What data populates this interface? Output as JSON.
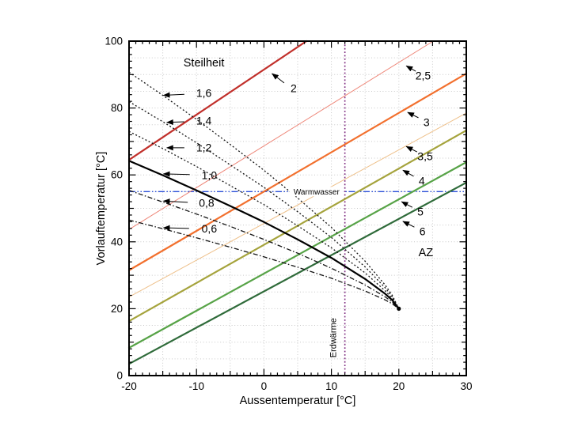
{
  "figure": {
    "background": "#ffffff",
    "steilheit_title": "Steilheit",
    "az_label": "AZ"
  },
  "chart_data": {
    "type": "line",
    "title": "",
    "xlabel": "Aussentemperatur [°C]",
    "ylabel": "Vorlauftemperatur [°C]",
    "xlim": [
      -20,
      30
    ],
    "ylim": [
      0,
      100
    ],
    "x_major_ticks": [
      -20,
      -10,
      0,
      10,
      20,
      30
    ],
    "y_major_ticks": [
      0,
      20,
      40,
      60,
      80,
      100
    ],
    "x_minor_step": 1,
    "x_medium_step": 5,
    "y_minor_step": 2,
    "y_medium_step": 10,
    "grid_step": 5,
    "grid_color": "#c9c9c9",
    "axis_color": "#000000",
    "convergence_point": [
      20,
      20
    ],
    "steilheit_curves": [
      {
        "label": "0,6",
        "slope": 0.6,
        "color": "#141414",
        "width": 1.3,
        "dash": "6 2.5 1.5 2.5",
        "x": [
          -20,
          -15,
          -10,
          -5,
          0,
          5,
          10,
          15,
          18,
          19,
          20
        ],
        "y": [
          46.5,
          43.9,
          41.2,
          38.4,
          35.5,
          32.4,
          29.1,
          25.3,
          22.6,
          21.5,
          20
        ],
        "label_xy": [
          -8.1,
          43.9
        ],
        "arrow_from": [
          -11.1,
          44.0
        ],
        "arrow_to": [
          -14.9,
          44.2
        ]
      },
      {
        "label": "0,8",
        "slope": 0.8,
        "color": "#141414",
        "width": 1.3,
        "dash": "6 2.5 1.5 2.5",
        "x": [
          -20,
          -15,
          -10,
          -5,
          0,
          5,
          10,
          15,
          18,
          19,
          20
        ],
        "y": [
          55.4,
          51.9,
          48.3,
          44.6,
          40.7,
          36.6,
          32.1,
          27.1,
          23.5,
          22.0,
          20
        ],
        "label_xy": [
          -8.5,
          51.5
        ],
        "arrow_from": [
          -11.3,
          51.8
        ],
        "arrow_to": [
          -14.9,
          52.2
        ]
      },
      {
        "label": "1,0",
        "slope": 1.0,
        "color": "#000000",
        "width": 2.2,
        "dash": null,
        "x": [
          -20,
          -15,
          -10,
          -5,
          0,
          5,
          10,
          15,
          18,
          19,
          20
        ],
        "y": [
          64.2,
          59.9,
          55.4,
          50.7,
          45.9,
          40.7,
          35.2,
          28.9,
          24.4,
          22.6,
          20
        ],
        "label_xy": [
          -8.1,
          59.8
        ],
        "arrow_from": [
          -11.0,
          60.1
        ],
        "arrow_to": [
          -14.9,
          60.3
        ]
      },
      {
        "label": "1,2",
        "slope": 1.2,
        "color": "#141414",
        "width": 1.3,
        "dash": "2 2.6",
        "x": [
          -20,
          -15,
          -10,
          -5,
          0,
          5,
          10,
          15,
          18,
          19,
          20
        ],
        "y": [
          73.0,
          67.9,
          62.5,
          56.8,
          51.1,
          44.8,
          38.2,
          30.7,
          25.3,
          23.1,
          20
        ],
        "label_xy": [
          -8.9,
          68.1
        ],
        "arrow_from": [
          -11.8,
          68.1
        ],
        "arrow_to": [
          -14.4,
          68.1
        ]
      },
      {
        "label": "1,4",
        "slope": 1.4,
        "color": "#141414",
        "width": 1.3,
        "dash": "2 2.6",
        "x": [
          -20,
          -15,
          -10,
          -5,
          0,
          5,
          10,
          15,
          18,
          19,
          20
        ],
        "y": [
          81.9,
          75.9,
          69.6,
          63.0,
          56.3,
          49.0,
          41.3,
          32.5,
          26.2,
          23.6,
          20
        ],
        "label_xy": [
          -8.9,
          76.1
        ],
        "arrow_from": [
          -11.8,
          75.9
        ],
        "arrow_to": [
          -14.4,
          75.7
        ]
      },
      {
        "label": "1,6",
        "slope": 1.6,
        "color": "#141414",
        "width": 1.3,
        "dash": "2 2.6",
        "x": [
          -20,
          -15,
          -10,
          -5,
          0,
          5,
          10,
          15,
          18,
          19,
          20
        ],
        "y": [
          90.7,
          83.8,
          76.6,
          69.1,
          61.4,
          53.1,
          44.3,
          34.2,
          27.0,
          24.1,
          20
        ],
        "label_xy": [
          -8.9,
          84.4
        ],
        "arrow_from": [
          -11.8,
          84.1
        ],
        "arrow_to": [
          -14.9,
          83.8
        ]
      }
    ],
    "az_lines": [
      {
        "label": "2",
        "color": "#c1302b",
        "width": 2.2,
        "x": [
          -20,
          6.3
        ],
        "y": [
          64.5,
          100
        ],
        "label_xy": [
          4.4,
          85.8
        ],
        "arrow_from": [
          3.0,
          87.5
        ],
        "arrow_to": [
          1.2,
          90.3
        ]
      },
      {
        "label": "2,5",
        "color": "#ee8678",
        "width": 1.0,
        "x": [
          -20,
          25.1
        ],
        "y": [
          43.7,
          100
        ],
        "label_xy": [
          23.6,
          89.6
        ],
        "arrow_from": [
          22.5,
          91.0
        ],
        "arrow_to": [
          21.1,
          92.6
        ]
      },
      {
        "label": "3",
        "color": "#f2702e",
        "width": 2.2,
        "x": [
          -20,
          30
        ],
        "y": [
          31.5,
          90.3
        ],
        "label_xy": [
          24.1,
          75.7
        ],
        "arrow_from": [
          22.9,
          77.1
        ],
        "arrow_to": [
          21.3,
          78.7
        ]
      },
      {
        "label": "3,5",
        "color": "#eec08a",
        "width": 1.0,
        "x": [
          -20,
          30
        ],
        "y": [
          23.5,
          78.5
        ],
        "label_xy": [
          23.9,
          65.5
        ],
        "arrow_from": [
          22.7,
          66.9
        ],
        "arrow_to": [
          21.1,
          68.5
        ]
      },
      {
        "label": "4",
        "color": "#a5a33c",
        "width": 2.2,
        "x": [
          -20,
          30
        ],
        "y": [
          16.3,
          73.3
        ],
        "label_xy": [
          23.4,
          58.2
        ],
        "arrow_from": [
          22.2,
          59.6
        ],
        "arrow_to": [
          20.6,
          61.4
        ]
      },
      {
        "label": "5",
        "color": "#57a347",
        "width": 2.2,
        "x": [
          -20,
          30
        ],
        "y": [
          8.3,
          63.8
        ],
        "label_xy": [
          23.2,
          48.9
        ],
        "arrow_from": [
          22.0,
          50.3
        ],
        "arrow_to": [
          20.4,
          52.0
        ]
      },
      {
        "label": "6",
        "color": "#2f6b3a",
        "width": 2.2,
        "x": [
          -20,
          30
        ],
        "y": [
          3.5,
          57.7
        ],
        "label_xy": [
          23.5,
          43.0
        ],
        "arrow_from": [
          22.3,
          44.4
        ],
        "arrow_to": [
          20.6,
          46.1
        ]
      }
    ],
    "reference_lines": [
      {
        "label": "Warmwasser",
        "orientation": "horizontal",
        "value": 55,
        "color": "#2a4fd8",
        "width": 1.4,
        "dash": "8 2.5 1.5 2.5 1.5 2.5",
        "label_xy": [
          7.8,
          55
        ],
        "label_size": 10
      },
      {
        "label": "Erdwärme",
        "orientation": "vertical",
        "value": 12,
        "color": "#7e2a80",
        "width": 1.6,
        "dash": "1.8 2.6",
        "label_xy": [
          10.6,
          11.3
        ],
        "label_size": 11
      }
    ],
    "annotations": [
      {
        "text": "Steilheit",
        "xy": [
          -8.9,
          92.4
        ],
        "size": 14.5
      },
      {
        "text": "AZ",
        "xy": [
          24.0,
          35.7
        ],
        "size": 14.5
      }
    ]
  }
}
